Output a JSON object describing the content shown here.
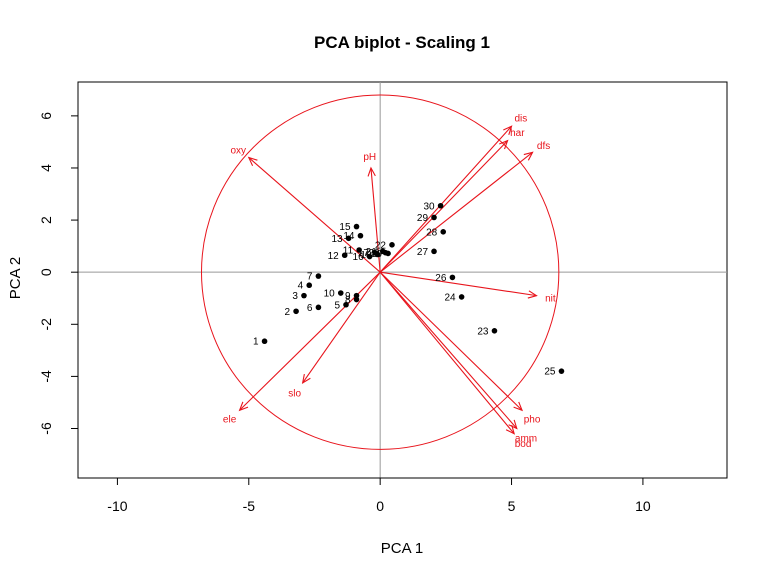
{
  "chart_data": {
    "type": "scatter",
    "title": "PCA biplot - Scaling 1",
    "xlabel": "PCA  1",
    "ylabel": "PCA  2",
    "xlim": [
      -11.5,
      13.2
    ],
    "ylim": [
      -7.9,
      7.3
    ],
    "xticks": [
      -10,
      -5,
      0,
      5,
      10
    ],
    "yticks": [
      -6,
      -4,
      -2,
      0,
      2,
      4,
      6
    ],
    "reference_lines": {
      "x": 0,
      "y": 0
    },
    "circle_radius": 6.8,
    "colors": {
      "sites": "#000000",
      "variables": "#e8141c",
      "reference": "#999999",
      "frame": "#000000"
    },
    "sites": [
      {
        "label": "1",
        "x": -4.4,
        "y": -2.65
      },
      {
        "label": "2",
        "x": -3.2,
        "y": -1.5
      },
      {
        "label": "3",
        "x": -2.9,
        "y": -0.9
      },
      {
        "label": "4",
        "x": -2.7,
        "y": -0.5
      },
      {
        "label": "5",
        "x": -1.3,
        "y": -1.25
      },
      {
        "label": "6",
        "x": -2.35,
        "y": -1.35
      },
      {
        "label": "7",
        "x": -2.35,
        "y": -0.15
      },
      {
        "label": "8",
        "x": -0.9,
        "y": -1.05
      },
      {
        "label": "9",
        "x": -0.9,
        "y": -0.9
      },
      {
        "label": "10",
        "x": -1.5,
        "y": -0.8
      },
      {
        "label": "11",
        "x": -0.8,
        "y": 0.85
      },
      {
        "label": "12",
        "x": -1.35,
        "y": 0.65
      },
      {
        "label": "13",
        "x": -1.2,
        "y": 1.3
      },
      {
        "label": "14",
        "x": -0.75,
        "y": 1.4
      },
      {
        "label": "15",
        "x": -0.9,
        "y": 1.75
      },
      {
        "label": "16",
        "x": -0.4,
        "y": 0.6
      },
      {
        "label": "17",
        "x": -0.2,
        "y": 0.75
      },
      {
        "label": "18",
        "x": -0.1,
        "y": 0.68
      },
      {
        "label": "19",
        "x": 0.3,
        "y": 0.72
      },
      {
        "label": "20",
        "x": 0.2,
        "y": 0.75
      },
      {
        "label": "21",
        "x": 0.1,
        "y": 0.8
      },
      {
        "label": "22",
        "x": 0.45,
        "y": 1.05
      },
      {
        "label": "27",
        "x": 2.05,
        "y": 0.8
      },
      {
        "label": "28",
        "x": 2.4,
        "y": 1.55
      },
      {
        "label": "29",
        "x": 2.05,
        "y": 2.1
      },
      {
        "label": "30",
        "x": 2.3,
        "y": 2.55
      },
      {
        "label": "26",
        "x": 2.75,
        "y": -0.2
      },
      {
        "label": "24",
        "x": 3.1,
        "y": -0.95
      },
      {
        "label": "23",
        "x": 4.35,
        "y": -2.25
      },
      {
        "label": "25",
        "x": 6.9,
        "y": -3.8
      }
    ],
    "variables": [
      {
        "label": "dis",
        "x": 5.0,
        "y": 5.6
      },
      {
        "label": "har",
        "x": 4.85,
        "y": 5.05
      },
      {
        "label": "dfs",
        "x": 5.8,
        "y": 4.6
      },
      {
        "label": "oxy",
        "x": -5.0,
        "y": 4.4
      },
      {
        "label": "pH",
        "x": -0.35,
        "y": 4.0
      },
      {
        "label": "nit",
        "x": 5.95,
        "y": -0.9
      },
      {
        "label": "pho",
        "x": 5.4,
        "y": -5.3
      },
      {
        "label": "amm",
        "x": 5.2,
        "y": -6.0
      },
      {
        "label": "bod",
        "x": 5.1,
        "y": -6.2
      },
      {
        "label": "slo",
        "x": -2.95,
        "y": -4.25
      },
      {
        "label": "ele",
        "x": -5.35,
        "y": -5.3
      }
    ]
  }
}
